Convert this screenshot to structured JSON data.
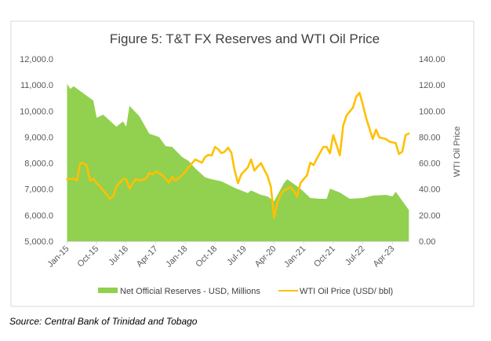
{
  "chart_data": {
    "type": "area+line",
    "title": "Figure 5: T&T FX Reserves and WTI Oil Price",
    "xlabel": "",
    "ylabel_left": "",
    "ylabel_right": "WTI Oil Price",
    "x_tick_labels": [
      "Jan-15",
      "Oct-15",
      "Jul-16",
      "Apr-17",
      "Jan-18",
      "Oct-18",
      "Jul-19",
      "Apr-20",
      "Jan-21",
      "Oct-21",
      "Jul-22",
      "Apr-23"
    ],
    "y_left": {
      "min": 5000,
      "max": 12000,
      "step": 1000,
      "tick_labels": [
        "5,000.0",
        "6,000.0",
        "7,000.0",
        "8,000.0",
        "9,000.0",
        "10,000.0",
        "11,000.0",
        "12,000.0"
      ]
    },
    "y_right": {
      "min": 0,
      "max": 140,
      "step": 20,
      "tick_labels": [
        "0.00",
        "20.00",
        "40.00",
        "60.00",
        "80.00",
        "100.00",
        "120.00",
        "140.00"
      ]
    },
    "grid": false,
    "legend_position": "bottom",
    "series": [
      {
        "name": "Net Official Reserves - USD, Millions",
        "type": "area",
        "axis": "left",
        "color": "#92d050",
        "points": [
          [
            "2015-01",
            11040
          ],
          [
            "2015-02",
            10850
          ],
          [
            "2015-03",
            10950
          ],
          [
            "2015-09",
            10400
          ],
          [
            "2015-10",
            9740
          ],
          [
            "2015-12",
            9860
          ],
          [
            "2016-04",
            9400
          ],
          [
            "2016-06",
            9600
          ],
          [
            "2016-07",
            9400
          ],
          [
            "2016-08",
            10200
          ],
          [
            "2016-11",
            9800
          ],
          [
            "2017-02",
            9130
          ],
          [
            "2017-05",
            9000
          ],
          [
            "2017-07",
            8650
          ],
          [
            "2017-09",
            8620
          ],
          [
            "2017-12",
            8230
          ],
          [
            "2018-02",
            8080
          ],
          [
            "2018-04",
            7800
          ],
          [
            "2018-07",
            7450
          ],
          [
            "2018-09",
            7380
          ],
          [
            "2018-12",
            7300
          ],
          [
            "2019-04",
            7050
          ],
          [
            "2019-08",
            6850
          ],
          [
            "2019-09",
            6950
          ],
          [
            "2019-12",
            6780
          ],
          [
            "2020-02",
            6720
          ],
          [
            "2020-04",
            6540
          ],
          [
            "2020-07",
            7230
          ],
          [
            "2020-08",
            7380
          ],
          [
            "2020-12",
            7020
          ],
          [
            "2021-03",
            6660
          ],
          [
            "2021-06",
            6630
          ],
          [
            "2021-08",
            6630
          ],
          [
            "2021-09",
            7020
          ],
          [
            "2021-12",
            6870
          ],
          [
            "2022-03",
            6630
          ],
          [
            "2022-07",
            6660
          ],
          [
            "2022-10",
            6750
          ],
          [
            "2023-02",
            6780
          ],
          [
            "2023-04",
            6720
          ],
          [
            "2023-05",
            6900
          ],
          [
            "2023-09",
            6200
          ]
        ]
      },
      {
        "name": "WTI Oil Price (USD/ bbl)",
        "type": "line",
        "axis": "right",
        "color": "#ffc000",
        "points": [
          [
            "2015-01",
            47.7
          ],
          [
            "2015-03",
            48
          ],
          [
            "2015-04",
            46.5
          ],
          [
            "2015-05",
            60
          ],
          [
            "2015-06",
            60
          ],
          [
            "2015-07",
            58
          ],
          [
            "2015-08",
            46.5
          ],
          [
            "2015-09",
            48
          ],
          [
            "2015-10",
            44.6
          ],
          [
            "2015-11",
            42
          ],
          [
            "2016-01",
            36
          ],
          [
            "2016-02",
            32.6
          ],
          [
            "2016-03",
            34.4
          ],
          [
            "2016-04",
            42
          ],
          [
            "2016-06",
            47.7
          ],
          [
            "2016-07",
            47.7
          ],
          [
            "2016-08",
            40.4
          ],
          [
            "2016-09",
            44.6
          ],
          [
            "2016-10",
            48
          ],
          [
            "2016-11",
            46.5
          ],
          [
            "2017-01",
            48
          ],
          [
            "2017-02",
            52.5
          ],
          [
            "2017-03",
            51.3
          ],
          [
            "2017-04",
            53.7
          ],
          [
            "2017-06",
            50.7
          ],
          [
            "2017-07",
            48
          ],
          [
            "2017-08",
            45
          ],
          [
            "2017-09",
            49.5
          ],
          [
            "2017-10",
            46.5
          ],
          [
            "2017-12",
            50.7
          ],
          [
            "2018-02",
            56.7
          ],
          [
            "2018-04",
            62.8
          ],
          [
            "2018-06",
            60.3
          ],
          [
            "2018-07",
            64.6
          ],
          [
            "2018-08",
            66.4
          ],
          [
            "2018-09",
            65.8
          ],
          [
            "2018-10",
            72.4
          ],
          [
            "2018-11",
            70.6
          ],
          [
            "2018-12",
            67.6
          ],
          [
            "2019-01",
            68.8
          ],
          [
            "2019-02",
            71.8
          ],
          [
            "2019-03",
            68
          ],
          [
            "2019-04",
            54.3
          ],
          [
            "2019-05",
            44.6
          ],
          [
            "2019-06",
            51.3
          ],
          [
            "2019-08",
            56.7
          ],
          [
            "2019-09",
            62.8
          ],
          [
            "2019-10",
            54.3
          ],
          [
            "2019-11",
            57.3
          ],
          [
            "2019-12",
            60
          ],
          [
            "2020-02",
            50
          ],
          [
            "2020-03",
            42
          ],
          [
            "2020-04",
            18
          ],
          [
            "2020-05",
            30
          ],
          [
            "2020-06",
            36
          ],
          [
            "2020-07",
            39
          ],
          [
            "2020-09",
            41.5
          ],
          [
            "2020-10",
            38.6
          ],
          [
            "2020-11",
            34.4
          ],
          [
            "2020-12",
            44.6
          ],
          [
            "2021-02",
            50.7
          ],
          [
            "2021-03",
            60.3
          ],
          [
            "2021-04",
            58.5
          ],
          [
            "2021-05",
            63.4
          ],
          [
            "2021-07",
            72.4
          ],
          [
            "2021-08",
            72.4
          ],
          [
            "2021-09",
            67.6
          ],
          [
            "2021-10",
            81.5
          ],
          [
            "2021-12",
            66
          ],
          [
            "2022-01",
            88.7
          ],
          [
            "2022-02",
            96.5
          ],
          [
            "2022-04",
            102.6
          ],
          [
            "2022-05",
            111
          ],
          [
            "2022-06",
            114
          ],
          [
            "2022-07",
            105
          ],
          [
            "2022-08",
            94.7
          ],
          [
            "2022-10",
            78.5
          ],
          [
            "2022-11",
            85.7
          ],
          [
            "2022-12",
            79.7
          ],
          [
            "2023-02",
            78.5
          ],
          [
            "2023-03",
            76.6
          ],
          [
            "2023-05",
            75.4
          ],
          [
            "2023-06",
            67
          ],
          [
            "2023-07",
            68.8
          ],
          [
            "2023-08",
            81.5
          ],
          [
            "2023-09",
            82.7
          ]
        ]
      }
    ]
  },
  "source": "Source: Central Bank of Trinidad and Tobago"
}
